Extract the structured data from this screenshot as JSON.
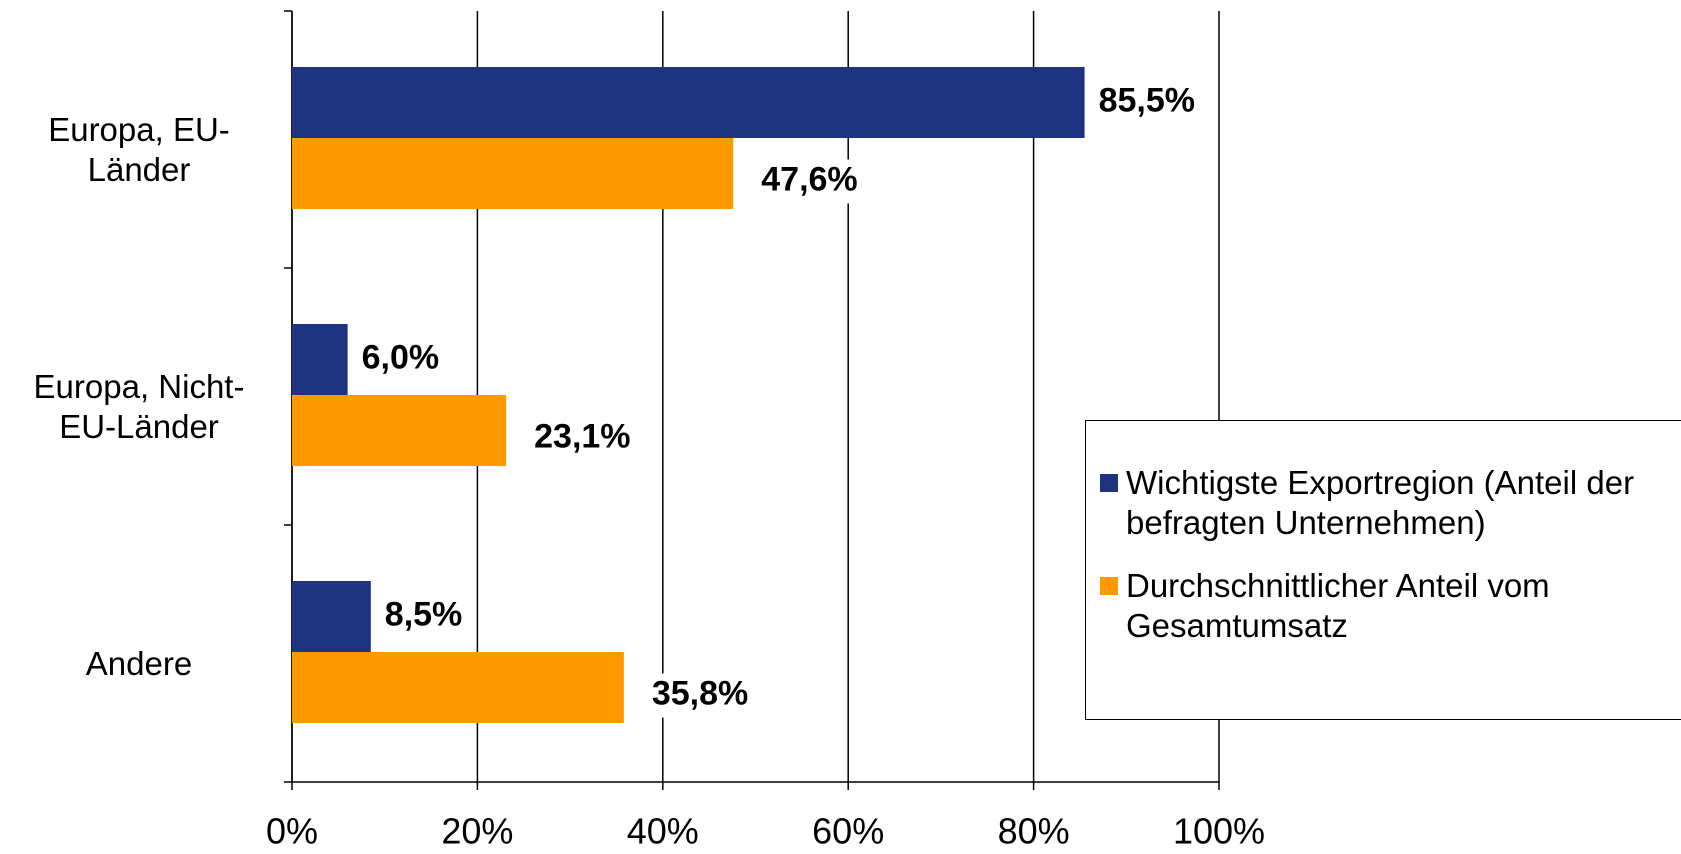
{
  "chart_data": {
    "type": "bar",
    "orientation": "horizontal",
    "categories": [
      "Europa, EU-\nLänder",
      "Europa, Nicht-\nEU-Länder",
      "Andere"
    ],
    "series": [
      {
        "name": "Wichtigste Exportregion (Anteil der befragten Unternehmen)",
        "color": "#1f3480",
        "values": [
          85.5,
          6.0,
          8.5
        ],
        "value_labels": [
          "85,5%",
          "6,0%",
          "8,5%"
        ]
      },
      {
        "name": "Durchschnittlicher Anteil vom Gesamtumsatz",
        "color": "#ff9900",
        "values": [
          47.6,
          23.1,
          35.8
        ],
        "value_labels": [
          "47,6%",
          "23,1%",
          "35,8%"
        ]
      }
    ],
    "xlim": [
      0,
      100
    ],
    "xticks": [
      {
        "value": 0,
        "label": "0%"
      },
      {
        "value": 20,
        "label": "20%"
      },
      {
        "value": 40,
        "label": "40%"
      },
      {
        "value": 60,
        "label": "60%"
      },
      {
        "value": 80,
        "label": "80%"
      },
      {
        "value": 100,
        "label": "100%"
      }
    ],
    "grid": true,
    "legend": "right"
  }
}
